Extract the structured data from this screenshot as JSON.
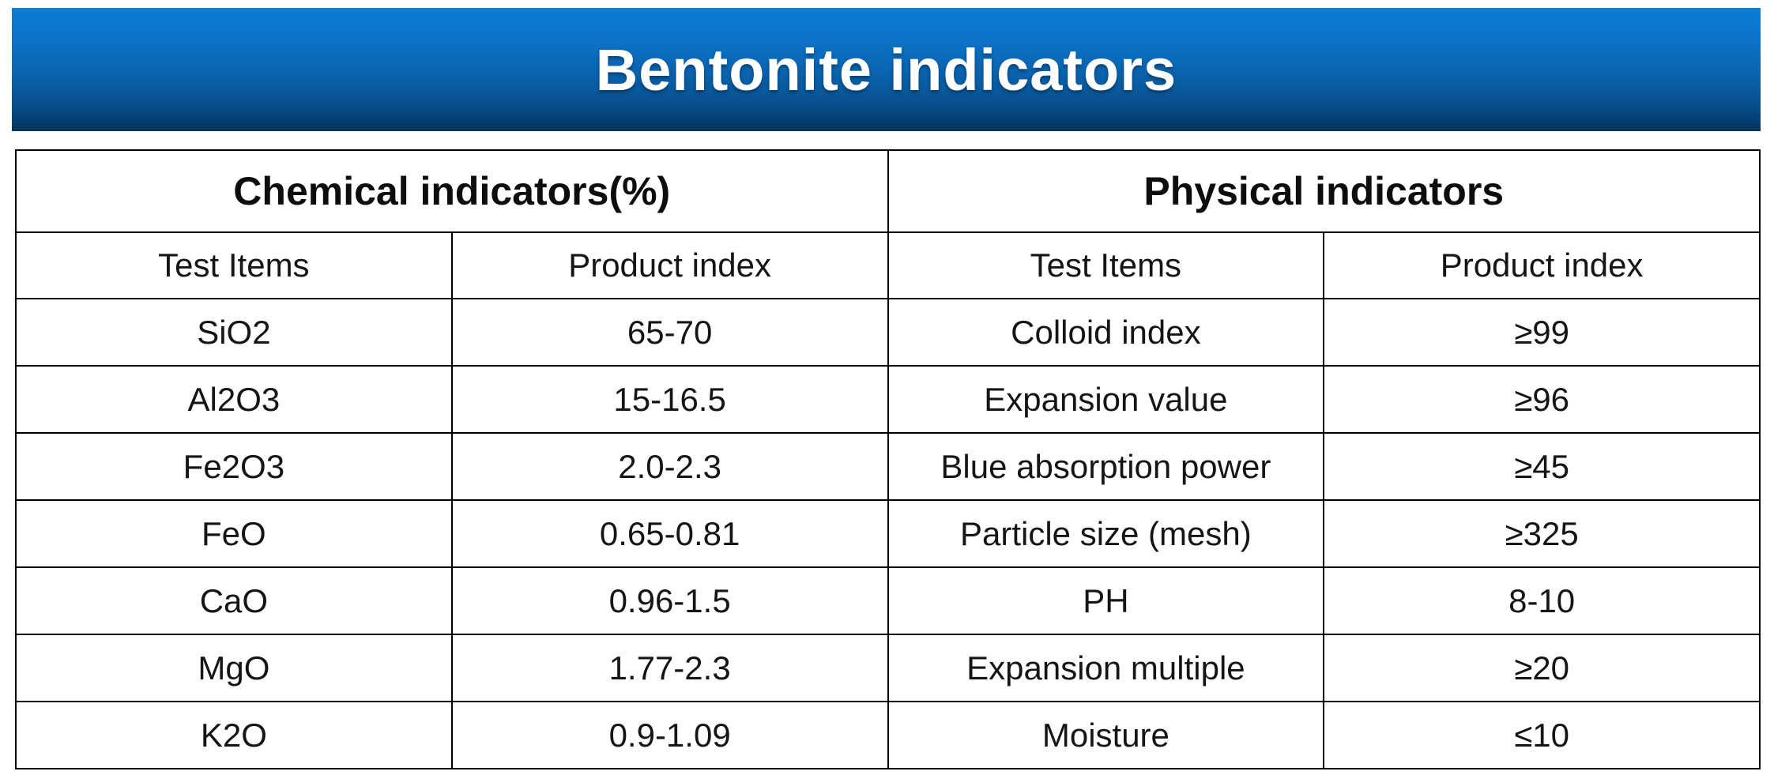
{
  "title": "Bentonite indicators",
  "colors": {
    "banner_top": "#0c7cd5",
    "banner_bottom": "#043258",
    "title_text": "#ffffff",
    "table_border": "#000000",
    "table_text": "#151515",
    "background": "#ffffff"
  },
  "sections": {
    "chemical": {
      "header": "Chemical indicators(%)",
      "col_item": "Test Items",
      "col_index": "Product index"
    },
    "physical": {
      "header": "Physical indicators",
      "col_item": "Test Items",
      "col_index": "Product index"
    }
  },
  "rows": [
    {
      "chem_item": "SiO2",
      "chem_value": "65-70",
      "phys_item": "Colloid index",
      "phys_value": "≥99"
    },
    {
      "chem_item": "Al2O3",
      "chem_value": "15-16.5",
      "phys_item": "Expansion value",
      "phys_value": "≥96"
    },
    {
      "chem_item": "Fe2O3",
      "chem_value": "2.0-2.3",
      "phys_item": "Blue absorption power",
      "phys_value": "≥45"
    },
    {
      "chem_item": "FeO",
      "chem_value": "0.65-0.81",
      "phys_item": "Particle size (mesh)",
      "phys_value": "≥325"
    },
    {
      "chem_item": "CaO",
      "chem_value": "0.96-1.5",
      "phys_item": "PH",
      "phys_value": "8-10"
    },
    {
      "chem_item": "MgO",
      "chem_value": "1.77-2.3",
      "phys_item": "Expansion multiple",
      "phys_value": "≥20"
    },
    {
      "chem_item": "K2O",
      "chem_value": "0.9-1.09",
      "phys_item": "Moisture",
      "phys_value": "≤10"
    }
  ]
}
